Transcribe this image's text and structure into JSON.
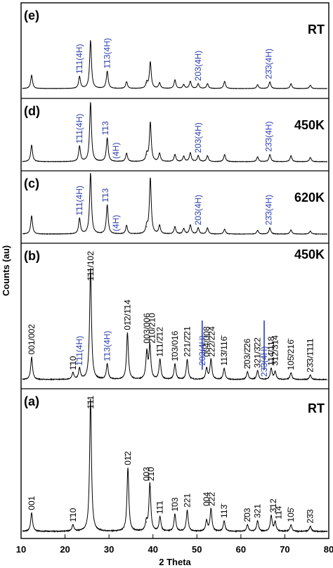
{
  "chart_data": {
    "type": "line",
    "xlabel": "2 Theta",
    "ylabel": "Counts (au)",
    "xlim": [
      10,
      80
    ],
    "xticks": [
      "10",
      "20",
      "30",
      "40",
      "50",
      "60",
      "70",
      "80"
    ],
    "colors": {
      "black": "#000000",
      "blue": "#2b3fae"
    },
    "panels": [
      {
        "label": "(e)",
        "condition": "RT",
        "peaks": [
          {
            "x": 12.4,
            "h": 0.28
          },
          {
            "x": 23.3,
            "h": 0.25
          },
          {
            "x": 25.8,
            "h": 1.0
          },
          {
            "x": 29.6,
            "h": 0.36
          },
          {
            "x": 34.0,
            "h": 0.14
          },
          {
            "x": 38.6,
            "h": 0.12
          },
          {
            "x": 39.4,
            "h": 0.55
          },
          {
            "x": 41.5,
            "h": 0.12
          },
          {
            "x": 45.0,
            "h": 0.18
          },
          {
            "x": 47.0,
            "h": 0.08
          },
          {
            "x": 48.5,
            "h": 0.15
          },
          {
            "x": 50.3,
            "h": 0.1
          },
          {
            "x": 52.4,
            "h": 0.1
          },
          {
            "x": 56.3,
            "h": 0.15
          },
          {
            "x": 63.8,
            "h": 0.08
          },
          {
            "x": 66.6,
            "h": 0.14
          },
          {
            "x": 71.4,
            "h": 0.1
          },
          {
            "x": 75.8,
            "h": 0.07
          }
        ],
        "annotations": [
          {
            "text": "1̄11(4H)",
            "x": 23.3,
            "color": "blue"
          },
          {
            "text": "1̄13(4H)",
            "x": 29.6,
            "color": "blue"
          },
          {
            "text": "203(4H)",
            "x": 50.3,
            "color": "blue"
          },
          {
            "text": "23̄3(4H)",
            "x": 66.3,
            "color": "blue"
          }
        ]
      },
      {
        "label": "(d)",
        "condition": "450K",
        "peaks": [
          {
            "x": 12.4,
            "h": 0.28
          },
          {
            "x": 23.3,
            "h": 0.26
          },
          {
            "x": 25.8,
            "h": 1.0
          },
          {
            "x": 29.6,
            "h": 0.4
          },
          {
            "x": 34.0,
            "h": 0.14
          },
          {
            "x": 38.6,
            "h": 0.12
          },
          {
            "x": 39.4,
            "h": 0.66
          },
          {
            "x": 41.5,
            "h": 0.14
          },
          {
            "x": 45.0,
            "h": 0.12
          },
          {
            "x": 47.0,
            "h": 0.09
          },
          {
            "x": 48.5,
            "h": 0.15
          },
          {
            "x": 50.3,
            "h": 0.1
          },
          {
            "x": 52.4,
            "h": 0.1
          },
          {
            "x": 56.3,
            "h": 0.12
          },
          {
            "x": 63.8,
            "h": 0.08
          },
          {
            "x": 66.6,
            "h": 0.12
          },
          {
            "x": 71.4,
            "h": 0.1
          },
          {
            "x": 75.8,
            "h": 0.07
          }
        ],
        "annotations": [
          {
            "text": "1̄11(4H)",
            "x": 23.3,
            "color": "blue"
          },
          {
            "text": "1̄13",
            "x": 29.2,
            "color": "blue"
          },
          {
            "text": "(4H)",
            "x": 31.6,
            "color": "blue"
          },
          {
            "text": "203(4H)",
            "x": 50.3,
            "color": "blue"
          },
          {
            "text": "23̄3(4H)",
            "x": 66.3,
            "color": "blue"
          }
        ]
      },
      {
        "label": "(c)",
        "condition": "620K",
        "peaks": [
          {
            "x": 12.4,
            "h": 0.3
          },
          {
            "x": 23.3,
            "h": 0.26
          },
          {
            "x": 25.8,
            "h": 1.0
          },
          {
            "x": 29.6,
            "h": 0.48
          },
          {
            "x": 34.0,
            "h": 0.14
          },
          {
            "x": 38.6,
            "h": 0.12
          },
          {
            "x": 39.4,
            "h": 0.92
          },
          {
            "x": 41.5,
            "h": 0.14
          },
          {
            "x": 45.0,
            "h": 0.12
          },
          {
            "x": 47.0,
            "h": 0.09
          },
          {
            "x": 48.5,
            "h": 0.15
          },
          {
            "x": 50.3,
            "h": 0.1
          },
          {
            "x": 52.4,
            "h": 0.1
          },
          {
            "x": 56.3,
            "h": 0.08
          },
          {
            "x": 63.8,
            "h": 0.06
          },
          {
            "x": 66.6,
            "h": 0.1
          },
          {
            "x": 71.4,
            "h": 0.07
          },
          {
            "x": 75.8,
            "h": 0.05
          }
        ],
        "annotations": [
          {
            "text": "1̄11(4H)",
            "x": 23.3,
            "color": "blue"
          },
          {
            "text": "1̄13",
            "x": 29.2,
            "color": "blue"
          },
          {
            "text": "(4H)",
            "x": 31.6,
            "color": "blue"
          },
          {
            "text": "203(4H)",
            "x": 50.3,
            "color": "blue"
          },
          {
            "text": "23̄3(4H)",
            "x": 66.3,
            "color": "blue"
          }
        ]
      },
      {
        "label": "(b)",
        "condition": "450K",
        "peaks": [
          {
            "x": 12.4,
            "h": 0.2
          },
          {
            "x": 21.8,
            "h": 0.06
          },
          {
            "x": 23.3,
            "h": 0.1
          },
          {
            "x": 25.8,
            "h": 1.0
          },
          {
            "x": 29.6,
            "h": 0.14
          },
          {
            "x": 34.2,
            "h": 0.42
          },
          {
            "x": 38.6,
            "h": 0.24
          },
          {
            "x": 39.3,
            "h": 0.3
          },
          {
            "x": 41.6,
            "h": 0.18
          },
          {
            "x": 45.0,
            "h": 0.14
          },
          {
            "x": 47.8,
            "h": 0.18
          },
          {
            "x": 52.2,
            "h": 0.1
          },
          {
            "x": 53.2,
            "h": 0.18
          },
          {
            "x": 56.2,
            "h": 0.1
          },
          {
            "x": 61.5,
            "h": 0.07
          },
          {
            "x": 63.8,
            "h": 0.08
          },
          {
            "x": 66.9,
            "h": 0.1
          },
          {
            "x": 67.8,
            "h": 0.07
          },
          {
            "x": 71.4,
            "h": 0.06
          },
          {
            "x": 75.8,
            "h": 0.04
          }
        ],
        "annotations": [
          {
            "text": "001/002",
            "x": 12.4,
            "color": "black"
          },
          {
            "text": "1̄10",
            "x": 21.8,
            "color": "black"
          },
          {
            "text": "1̄11(4H)",
            "x": 23.3,
            "color": "blue"
          },
          {
            "text": "1̄11/102",
            "x": 25.8,
            "color": "black"
          },
          {
            "text": "1̄13(4H)",
            "x": 29.6,
            "color": "blue"
          },
          {
            "text": "01̄2/1̄14",
            "x": 34.2,
            "color": "black"
          },
          {
            "text": "003/006",
            "x": 38.6,
            "color": "black"
          },
          {
            "text": "2̄10/210",
            "x": 39.8,
            "color": "black"
          },
          {
            "text": "11̄1/2̄12",
            "x": 41.6,
            "color": "black"
          },
          {
            "text": "1̄03/016",
            "x": 45.0,
            "color": "black"
          },
          {
            "text": "221/2̄21",
            "x": 47.8,
            "color": "black"
          },
          {
            "text": "203(4H)",
            "x": 51.2,
            "color": "blue"
          },
          {
            "text": "004/008",
            "x": 52.2,
            "color": "black"
          },
          {
            "text": "222/2̄24",
            "x": 53.4,
            "color": "black"
          },
          {
            "text": "113̄/116̄",
            "x": 56.2,
            "color": "black"
          },
          {
            "text": "2̄03/2̄26",
            "x": 61.5,
            "color": "black"
          },
          {
            "text": "321/3̄22",
            "x": 63.8,
            "color": "black"
          },
          {
            "text": "23̄3(4H)",
            "x": 65.3,
            "color": "blue"
          },
          {
            "text": "114̄/118",
            "x": 66.9,
            "color": "black"
          },
          {
            "text": "3̄12/314",
            "x": 67.8,
            "color": "black"
          },
          {
            "text": "105̄/216̄",
            "x": 71.4,
            "color": "black"
          },
          {
            "text": "23̄3/1̄111",
            "x": 75.8,
            "color": "black"
          }
        ]
      },
      {
        "label": "(a)",
        "condition": "RT",
        "peaks": [
          {
            "x": 12.4,
            "h": 0.14
          },
          {
            "x": 21.8,
            "h": 0.05
          },
          {
            "x": 25.8,
            "h": 1.0
          },
          {
            "x": 34.3,
            "h": 0.48
          },
          {
            "x": 38.5,
            "h": 0.07
          },
          {
            "x": 39.3,
            "h": 0.36
          },
          {
            "x": 41.6,
            "h": 0.11
          },
          {
            "x": 45.0,
            "h": 0.13
          },
          {
            "x": 47.8,
            "h": 0.16
          },
          {
            "x": 52.2,
            "h": 0.08
          },
          {
            "x": 53.2,
            "h": 0.17
          },
          {
            "x": 56.2,
            "h": 0.08
          },
          {
            "x": 61.5,
            "h": 0.05
          },
          {
            "x": 63.8,
            "h": 0.08
          },
          {
            "x": 66.9,
            "h": 0.12
          },
          {
            "x": 67.8,
            "h": 0.07
          },
          {
            "x": 71.4,
            "h": 0.05
          },
          {
            "x": 75.8,
            "h": 0.04
          }
        ],
        "annotations": [
          {
            "text": "001",
            "x": 12.4,
            "color": "black"
          },
          {
            "text": "1̄10",
            "x": 21.8,
            "color": "black"
          },
          {
            "text": "1̄11",
            "x": 25.8,
            "color": "black"
          },
          {
            "text": "01̄2",
            "x": 34.3,
            "color": "black"
          },
          {
            "text": "003",
            "x": 38.5,
            "color": "black"
          },
          {
            "text": "2̄10",
            "x": 39.6,
            "color": "black"
          },
          {
            "text": "11̄1",
            "x": 41.6,
            "color": "black"
          },
          {
            "text": "1̄03",
            "x": 45.0,
            "color": "black"
          },
          {
            "text": "221",
            "x": 47.8,
            "color": "black"
          },
          {
            "text": "004",
            "x": 52.2,
            "color": "black"
          },
          {
            "text": "2̄22",
            "x": 53.4,
            "color": "black"
          },
          {
            "text": "113̄",
            "x": 56.2,
            "color": "black"
          },
          {
            "text": "2̄03",
            "x": 61.5,
            "color": "black"
          },
          {
            "text": "321",
            "x": 63.8,
            "color": "black"
          },
          {
            "text": "3̄12",
            "x": 67.4,
            "color": "black"
          },
          {
            "text": "11̄4",
            "x": 68.6,
            "color": "black"
          },
          {
            "text": "105̄",
            "x": 71.4,
            "color": "black"
          },
          {
            "text": "23̄3",
            "x": 75.8,
            "color": "black"
          }
        ]
      }
    ]
  }
}
